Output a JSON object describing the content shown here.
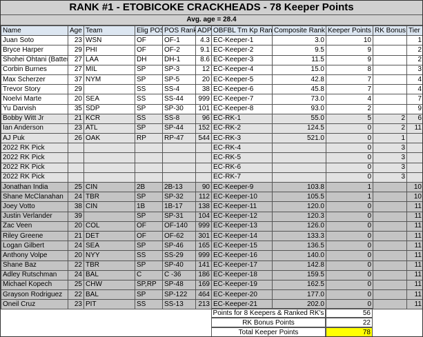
{
  "title": "RANK #1 - ETOBICOKE CRACKHEADS - 78 Keeper Points",
  "avg_age": "Avg. age = 28.4",
  "headers": [
    "Name",
    "Age",
    "Team",
    "Elig POS",
    "POS Rank",
    "ADP",
    "OBFBL Tm Kp Rank",
    "Composite Rank",
    "Keeper Points",
    "RK Bonus",
    "Tier"
  ],
  "rows": [
    [
      "Juan Soto",
      "23",
      "WSN",
      "OF",
      "OF-1",
      "4.3",
      "EC-Keeper-1",
      "3.0",
      "10",
      "",
      "1"
    ],
    [
      "Bryce Harper",
      "29",
      "PHI",
      "OF",
      "OF-2",
      "9.1",
      "EC-Keeper-2",
      "9.5",
      "9",
      "",
      "2"
    ],
    [
      "Shohei Ohtani (Batter)",
      "27",
      "LAA",
      "DH",
      "DH-1",
      "8.6",
      "EC-Keeper-3",
      "11.5",
      "9",
      "",
      "2"
    ],
    [
      "Corbin Burnes",
      "27",
      "MIL",
      "SP",
      "SP-3",
      "12",
      "EC-Keeper-4",
      "15.0",
      "8",
      "",
      "3"
    ],
    [
      "Max Scherzer",
      "37",
      "NYM",
      "SP",
      "SP-5",
      "20",
      "EC-Keeper-5",
      "42.8",
      "7",
      "",
      "4"
    ],
    [
      "Trevor Story",
      "29",
      "",
      "SS",
      "SS-4",
      "38",
      "EC-Keeper-6",
      "45.8",
      "7",
      "",
      "4"
    ],
    [
      "Noelvi Marte",
      "20",
      "SEA",
      "SS",
      "SS-44",
      "999",
      "EC-Keeper-7",
      "73.0",
      "4",
      "",
      "7"
    ],
    [
      "Yu Darvish",
      "35",
      "SDP",
      "SP",
      "SP-30",
      "101",
      "EC-Keeper-8",
      "93.0",
      "2",
      "",
      "9"
    ],
    [
      "Bobby Witt Jr",
      "21",
      "KCR",
      "SS",
      "SS-8",
      "96",
      "EC-RK-1",
      "55.0",
      "5",
      "2",
      "6"
    ],
    [
      "Ian Anderson",
      "23",
      "ATL",
      "SP",
      "SP-44",
      "152",
      "EC-RK-2",
      "124.5",
      "0",
      "2",
      "11"
    ],
    [
      "AJ Puk",
      "26",
      "OAK",
      "RP",
      "RP-47",
      "544",
      "EC-RK-3",
      "521.0",
      "0",
      "1",
      ""
    ],
    [
      "2022 RK Pick",
      "",
      "",
      "",
      "",
      "",
      "EC-RK-4",
      "",
      "0",
      "3",
      ""
    ],
    [
      "2022 RK Pick",
      "",
      "",
      "",
      "",
      "",
      "EC-RK-5",
      "",
      "0",
      "3",
      ""
    ],
    [
      "2022 RK Pick",
      "",
      "",
      "",
      "",
      "",
      "EC-RK-6",
      "",
      "0",
      "3",
      ""
    ],
    [
      "2022 RK Pick",
      "",
      "",
      "",
      "",
      "",
      "EC-RK-7",
      "",
      "0",
      "3",
      ""
    ],
    [
      "Jonathan India",
      "25",
      "CIN",
      "2B",
      "2B-13",
      "90",
      "EC-Keeper-9",
      "103.8",
      "1",
      "",
      "10"
    ],
    [
      "Shane McClanahan",
      "24",
      "TBR",
      "SP",
      "SP-32",
      "112",
      "EC-Keeper-10",
      "105.5",
      "1",
      "",
      "10"
    ],
    [
      "Joey Votto",
      "38",
      "CIN",
      "1B",
      "1B-17",
      "138",
      "EC-Keeper-11",
      "120.0",
      "0",
      "",
      "11"
    ],
    [
      "Justin Verlander",
      "39",
      "",
      "SP",
      "SP-31",
      "104",
      "EC-Keeper-12",
      "120.3",
      "0",
      "",
      "11"
    ],
    [
      "Zac Veen",
      "20",
      "COL",
      "OF",
      "OF-140",
      "999",
      "EC-Keeper-13",
      "126.0",
      "0",
      "",
      "11"
    ],
    [
      "Riley Greene",
      "21",
      "DET",
      "OF",
      "OF-62",
      "301",
      "EC-Keeper-14",
      "133.3",
      "0",
      "",
      "11"
    ],
    [
      "Logan Gilbert",
      "24",
      "SEA",
      "SP",
      "SP-46",
      "165",
      "EC-Keeper-15",
      "136.5",
      "0",
      "",
      "11"
    ],
    [
      "Anthony Volpe",
      "20",
      "NYY",
      "SS",
      "SS-29",
      "999",
      "EC-Keeper-16",
      "140.0",
      "0",
      "",
      "11"
    ],
    [
      "Shane Baz",
      "22",
      "TBR",
      "SP",
      "SP-40",
      "141",
      "EC-Keeper-17",
      "142.8",
      "0",
      "",
      "11"
    ],
    [
      "Adley Rutschman",
      "24",
      "BAL",
      "C",
      "C -36",
      "186",
      "EC-Keeper-18",
      "159.5",
      "0",
      "",
      "11"
    ],
    [
      "Michael Kopech",
      "25",
      "CHW",
      "SP,RP",
      "SP-48",
      "169",
      "EC-Keeper-19",
      "162.5",
      "0",
      "",
      "11"
    ],
    [
      "Grayson Rodriguez",
      "22",
      "BAL",
      "SP",
      "SP-122",
      "464",
      "EC-Keeper-20",
      "177.0",
      "0",
      "",
      "11"
    ],
    [
      "Oneil Cruz",
      "23",
      "PIT",
      "SS",
      "SS-13",
      "213",
      "EC-Keeper-21",
      "202.0",
      "0",
      "",
      "11"
    ]
  ],
  "footer": [
    {
      "label": "Points for 8 Keepers & Ranked RK's",
      "value": "56"
    },
    {
      "label": "RK Bonus Points",
      "value": "22"
    },
    {
      "label": "Total Keeper Points",
      "value": "78"
    }
  ],
  "colors": {
    "header": "#dce6f1",
    "title": "#d0d0d0",
    "rk_rows": "#e2e2e2",
    "other_rows": "#c4c4c4",
    "total_highlight": "#ffff00"
  }
}
